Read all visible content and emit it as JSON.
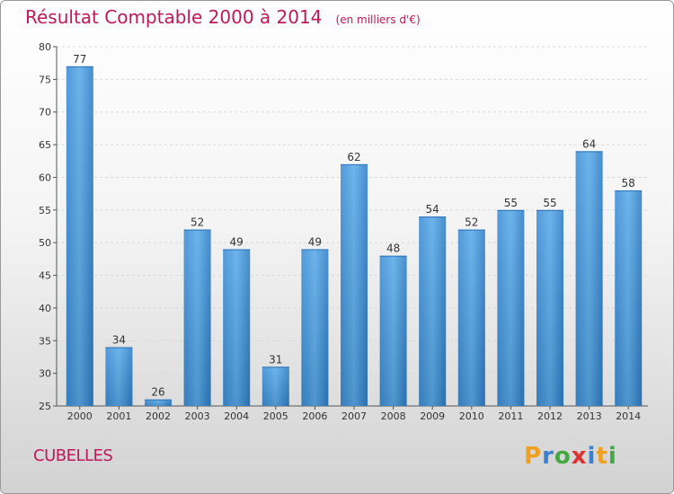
{
  "chart_data": {
    "type": "bar",
    "title": "Résultat Comptable 2000 à 2014",
    "subtitle": "(en milliers d'€)",
    "categories": [
      "2000",
      "2001",
      "2002",
      "2003",
      "2004",
      "2005",
      "2006",
      "2007",
      "2008",
      "2009",
      "2010",
      "2011",
      "2012",
      "2013",
      "2014"
    ],
    "values": [
      77,
      34,
      26,
      52,
      49,
      31,
      49,
      62,
      48,
      54,
      52,
      55,
      55,
      64,
      58
    ],
    "ylim": [
      25,
      80
    ],
    "yticks": [
      25,
      30,
      35,
      40,
      45,
      50,
      55,
      60,
      65,
      70,
      75,
      80
    ],
    "xlabel": "",
    "ylabel": "",
    "grid": true,
    "bar_color": "#3d8fd6"
  },
  "footer": {
    "commune": "CUBELLES",
    "logo_text": "Proxiti"
  },
  "colors": {
    "title": "#c0185a",
    "text": "#333333"
  }
}
